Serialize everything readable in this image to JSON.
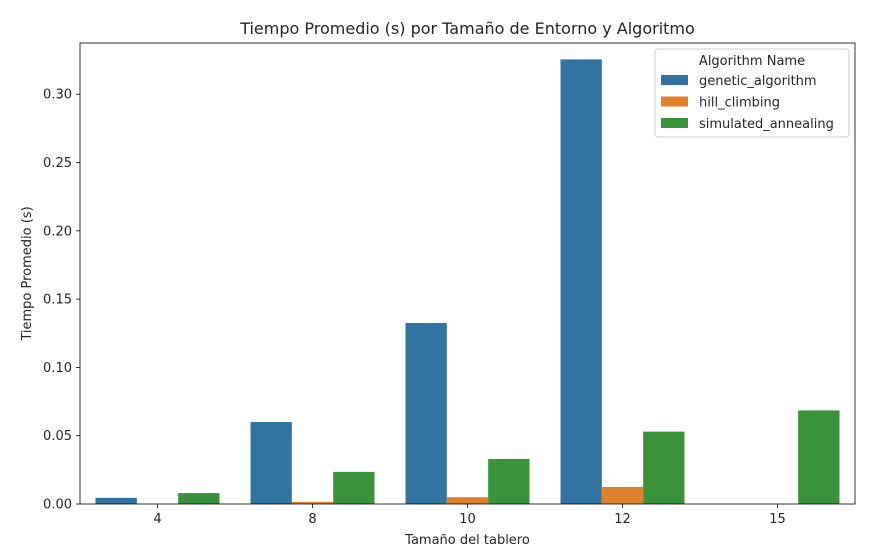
{
  "chart_data": {
    "type": "bar",
    "title": "Tiempo Promedio (s) por Tamaño de Entorno y Algoritmo",
    "xlabel": "Tamaño del tablero",
    "ylabel": "Tiempo Promedio (s)",
    "categories": [
      "4",
      "8",
      "10",
      "12",
      "15"
    ],
    "ylim": [
      0,
      0.3375
    ],
    "yticks": [
      0.0,
      0.05,
      0.1,
      0.15,
      0.2,
      0.25,
      0.3
    ],
    "ytick_labels": [
      "0.00",
      "0.05",
      "0.10",
      "0.15",
      "0.20",
      "0.25",
      "0.30"
    ],
    "grid": false,
    "legend": {
      "title": "Algorithm Name",
      "placement": "top-right"
    },
    "series": [
      {
        "name": "genetic_algorithm",
        "color": "#3274a1",
        "values": [
          0.0045,
          0.06,
          0.1325,
          0.3255,
          0
        ]
      },
      {
        "name": "hill_climbing",
        "color": "#e1812c",
        "values": [
          0,
          0.0015,
          0.005,
          0.0125,
          0
        ]
      },
      {
        "name": "simulated_annealing",
        "color": "#3a923a",
        "values": [
          0.008,
          0.0235,
          0.033,
          0.053,
          0.0685
        ]
      }
    ]
  }
}
